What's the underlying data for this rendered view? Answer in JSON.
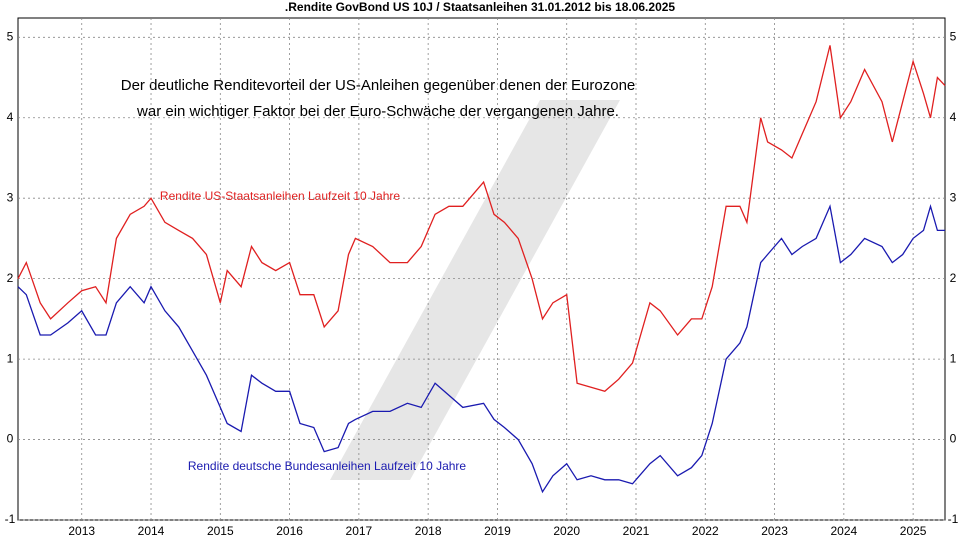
{
  "chart_data": {
    "type": "line",
    "title": ".Rendite GovBond US 10J / Staatsanleihen 31.01.2012 bis 18.06.2025",
    "annotations": [
      "Der deutliche Renditevorteil der US-Anleihen gegenüber denen der Eurozone",
      "war ein wichtiger Faktor bei der Euro-Schwäche der vergangenen Jahre."
    ],
    "x": [
      2012.08,
      2012.2,
      2012.4,
      2012.55,
      2012.8,
      2013.0,
      2013.2,
      2013.35,
      2013.5,
      2013.7,
      2013.9,
      2014.0,
      2014.2,
      2014.4,
      2014.6,
      2014.8,
      2015.0,
      2015.1,
      2015.3,
      2015.45,
      2015.6,
      2015.8,
      2016.0,
      2016.15,
      2016.35,
      2016.5,
      2016.7,
      2016.85,
      2016.95,
      2017.2,
      2017.45,
      2017.7,
      2017.9,
      2018.1,
      2018.3,
      2018.5,
      2018.8,
      2018.95,
      2019.1,
      2019.3,
      2019.5,
      2019.65,
      2019.8,
      2020.0,
      2020.15,
      2020.35,
      2020.55,
      2020.75,
      2020.95,
      2021.2,
      2021.35,
      2021.6,
      2021.8,
      2021.95,
      2022.1,
      2022.3,
      2022.5,
      2022.6,
      2022.8,
      2022.9,
      2023.1,
      2023.25,
      2023.4,
      2023.6,
      2023.8,
      2023.95,
      2024.1,
      2024.3,
      2024.55,
      2024.7,
      2024.85,
      2025.0,
      2025.15,
      2025.25,
      2025.35,
      2025.46
    ],
    "series": [
      {
        "name": "Rendite US-Staatsanleihen Laufzeit 10 Jahre",
        "color": "#e02020",
        "values": [
          2.0,
          2.2,
          1.7,
          1.5,
          1.7,
          1.85,
          1.9,
          1.7,
          2.5,
          2.8,
          2.9,
          3.0,
          2.7,
          2.6,
          2.5,
          2.3,
          1.7,
          2.1,
          1.9,
          2.4,
          2.2,
          2.1,
          2.2,
          1.8,
          1.8,
          1.4,
          1.6,
          2.3,
          2.5,
          2.4,
          2.2,
          2.2,
          2.4,
          2.8,
          2.9,
          2.9,
          3.2,
          2.8,
          2.7,
          2.5,
          2.0,
          1.5,
          1.7,
          1.8,
          0.7,
          0.65,
          0.6,
          0.75,
          0.95,
          1.7,
          1.6,
          1.3,
          1.5,
          1.5,
          1.9,
          2.9,
          2.9,
          2.7,
          4.0,
          3.7,
          3.6,
          3.5,
          3.8,
          4.2,
          4.9,
          4.0,
          4.2,
          4.6,
          4.2,
          3.7,
          4.2,
          4.7,
          4.3,
          4.0,
          4.5,
          4.4
        ]
      },
      {
        "name": "Rendite deutsche Bundesanleihen Laufzeit 10 Jahre",
        "color": "#1a1ab0",
        "values": [
          1.9,
          1.8,
          1.3,
          1.3,
          1.45,
          1.6,
          1.3,
          1.3,
          1.7,
          1.9,
          1.7,
          1.9,
          1.6,
          1.4,
          1.1,
          0.8,
          0.4,
          0.2,
          0.1,
          0.8,
          0.7,
          0.6,
          0.6,
          0.2,
          0.15,
          -0.15,
          -0.1,
          0.2,
          0.25,
          0.35,
          0.35,
          0.45,
          0.4,
          0.7,
          0.55,
          0.4,
          0.45,
          0.25,
          0.15,
          0.0,
          -0.3,
          -0.65,
          -0.45,
          -0.3,
          -0.5,
          -0.45,
          -0.5,
          -0.5,
          -0.55,
          -0.3,
          -0.2,
          -0.45,
          -0.35,
          -0.2,
          0.2,
          1.0,
          1.2,
          1.4,
          2.2,
          2.3,
          2.5,
          2.3,
          2.4,
          2.5,
          2.9,
          2.2,
          2.3,
          2.5,
          2.4,
          2.2,
          2.3,
          2.5,
          2.6,
          2.9,
          2.6,
          2.6
        ]
      }
    ],
    "xlim": [
      2012.08,
      2025.46
    ],
    "xticks": [
      2013,
      2014,
      2015,
      2016,
      2017,
      2018,
      2019,
      2020,
      2021,
      2022,
      2023,
      2024,
      2025
    ],
    "ylim": [
      -1,
      5.24
    ],
    "yticks": [
      -1,
      0,
      1,
      2,
      3,
      4,
      5
    ],
    "grid": true
  }
}
